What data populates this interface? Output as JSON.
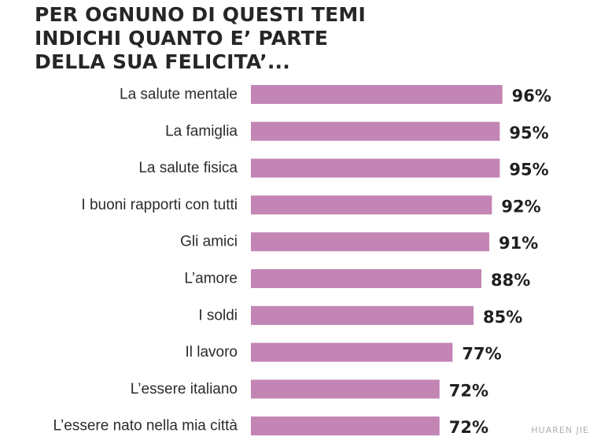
{
  "chart_data": {
    "type": "bar",
    "orientation": "horizontal",
    "title_lines": [
      "PER OGNUNO DI QUESTI TEMI",
      "INDICHI QUANTO E’ PARTE",
      "DELLA SUA FELICITA’..."
    ],
    "categories": [
      "La salute mentale",
      "La famiglia",
      "La salute fisica",
      "I buoni rapporti con tutti",
      "Gli amici",
      "L’amore",
      "I soldi",
      "Il lavoro",
      "L’essere italiano",
      "L’essere nato nella mia città"
    ],
    "values": [
      96,
      95,
      95,
      92,
      91,
      88,
      85,
      77,
      72,
      72
    ],
    "value_labels": [
      "96%",
      "95%",
      "95%",
      "92%",
      "91%",
      "88%",
      "85%",
      "77%",
      "72%",
      "72%"
    ],
    "bar_color": "#c285b4",
    "grid": false,
    "legend": "none"
  },
  "watermark_text": "HUAREN JIE"
}
